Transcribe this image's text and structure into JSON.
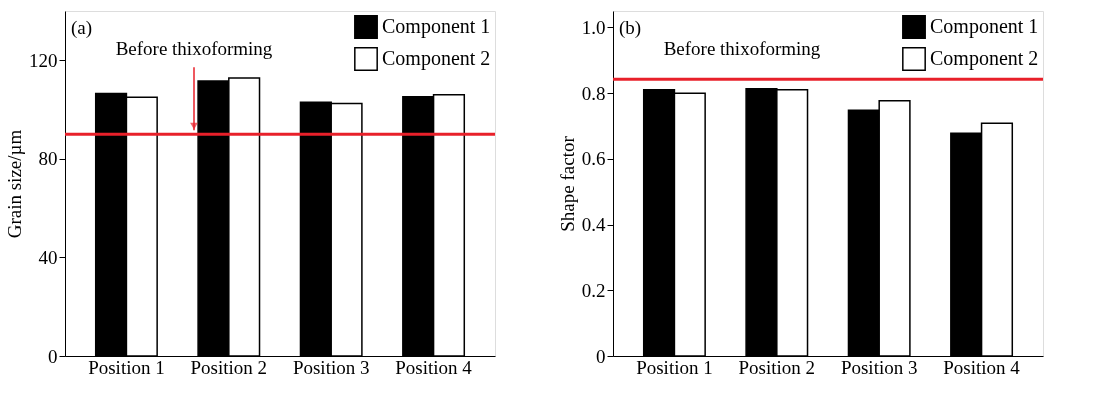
{
  "chart_data": [
    {
      "type": "bar",
      "ylabel": "Grain size/µm",
      "categories": [
        "Position 1",
        "Position 2",
        "Position 3",
        "Position 4"
      ],
      "series": [
        {
          "name": "Component 1",
          "color": "#000000",
          "values": [
            106.5,
            111.6,
            103,
            105.2
          ]
        },
        {
          "name": "Component 2",
          "color": "#ffffff",
          "values": [
            105,
            112.8,
            102.5,
            106
          ]
        }
      ],
      "ylim": [
        0,
        140
      ],
      "yticks": [
        0,
        40,
        80,
        120
      ],
      "legend": "top right",
      "grid": false,
      "ref_lines": [
        {
          "axis": "y",
          "value": 90,
          "label": "Before thixoforming",
          "color": "#e8202a"
        }
      ],
      "annotations": [
        "(a)"
      ]
    },
    {
      "type": "bar",
      "ylabel": "Shape factor",
      "categories": [
        "Position 1",
        "Position 2",
        "Position 3",
        "Position 4"
      ],
      "series": [
        {
          "name": "Component 1",
          "color": "#000000",
          "values": [
            0.81,
            0.813,
            0.748,
            0.678
          ]
        },
        {
          "name": "Component 2",
          "color": "#ffffff",
          "values": [
            0.8,
            0.81,
            0.777,
            0.708
          ]
        }
      ],
      "ylim": [
        0,
        1.05
      ],
      "yticks": [
        {
          "value": 0,
          "label": "0"
        },
        0.2,
        0.4,
        0.6,
        0.8,
        {
          "value": 1.0,
          "label": "1.0"
        }
      ],
      "legend": "top right",
      "grid": false,
      "ref_lines": [
        {
          "axis": "y",
          "value": 0.842,
          "label": "Before thixoforming",
          "color": "#e8202a"
        }
      ],
      "annotations": [
        "(b)"
      ]
    }
  ]
}
